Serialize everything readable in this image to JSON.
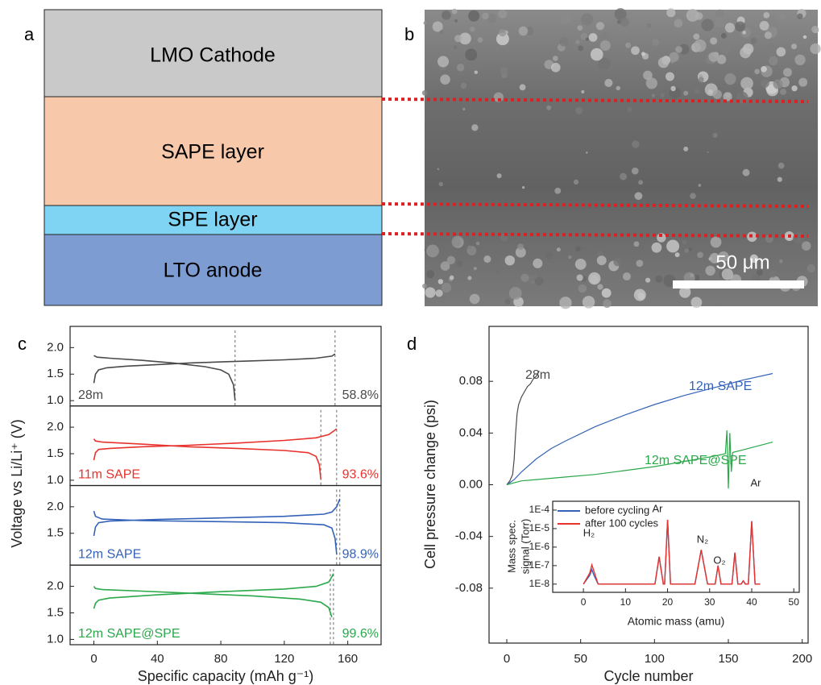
{
  "diagram": {
    "label": "a",
    "layers": [
      "LMO Cathode",
      "SAPE layer",
      "SPE layer",
      "LTO anode"
    ]
  },
  "image": {
    "label": "b",
    "scale_bar": "50 μm"
  },
  "panel_c": {
    "label": "c"
  },
  "panel_d": {
    "label": "d"
  },
  "chart_data": [
    {
      "type": "line",
      "y_label": "Voltage vs Li/Li⁺ (V)",
      "xlim": [
        -15,
        181
      ],
      "ylim": [
        0.9,
        2.4
      ],
      "yticks": [
        {
          "value": 1,
          "label": "1.0"
        },
        1.5,
        {
          "value": 2,
          "label": "2.0"
        }
      ],
      "series": [
        {
          "name": "28m",
          "color": "#4a4a4a",
          "x": [
            0,
            1,
            3,
            8,
            20,
            40,
            60,
            80,
            100,
            120,
            140,
            150,
            152,
            null,
            0,
            2,
            10,
            30,
            50,
            70,
            80,
            85,
            88,
            89
          ],
          "values": [
            1.33,
            1.5,
            1.58,
            1.62,
            1.65,
            1.68,
            1.71,
            1.73,
            1.75,
            1.77,
            1.8,
            1.84,
            1.88,
            null,
            1.85,
            1.82,
            1.8,
            1.76,
            1.71,
            1.64,
            1.58,
            1.5,
            1.3,
            1.0
          ]
        }
      ],
      "markers": [
        89,
        152
      ],
      "annotation": "58.8%"
    },
    {
      "type": "line",
      "xlim": [
        -15,
        181
      ],
      "ylim": [
        0.9,
        2.4
      ],
      "yticks": [
        {
          "value": 1,
          "label": "1.0"
        },
        1.5,
        {
          "value": 2,
          "label": "2.0"
        }
      ],
      "series": [
        {
          "name": "11m SAPE",
          "color": "#e8322d",
          "x": [
            0,
            1,
            3,
            10,
            30,
            60,
            90,
            120,
            140,
            148,
            153,
            null,
            0,
            1,
            5,
            30,
            60,
            90,
            120,
            135,
            140,
            142,
            143
          ],
          "values": [
            1.38,
            1.52,
            1.58,
            1.6,
            1.63,
            1.66,
            1.7,
            1.75,
            1.8,
            1.86,
            1.97,
            null,
            1.78,
            1.74,
            1.72,
            1.68,
            1.63,
            1.6,
            1.56,
            1.52,
            1.45,
            1.3,
            1.02
          ]
        }
      ],
      "markers": [
        143,
        153
      ],
      "annotation": "93.6%"
    },
    {
      "type": "line",
      "xlim": [
        -15,
        181
      ],
      "ylim": [
        0.9,
        2.4
      ],
      "yticks": [
        1.5,
        {
          "value": 2,
          "label": "2.0"
        }
      ],
      "series": [
        {
          "name": "12m SAPE",
          "color": "#3462b8",
          "x": [
            0,
            1,
            3,
            10,
            40,
            80,
            120,
            145,
            150,
            153,
            155,
            null,
            0,
            1,
            5,
            30,
            80,
            120,
            145,
            150,
            152,
            153
          ],
          "values": [
            1.45,
            1.62,
            1.7,
            1.73,
            1.76,
            1.79,
            1.82,
            1.86,
            1.9,
            2.0,
            2.15,
            null,
            1.92,
            1.82,
            1.77,
            1.74,
            1.72,
            1.7,
            1.66,
            1.6,
            1.4,
            1.1
          ]
        }
      ],
      "markers": [
        153,
        155
      ],
      "annotation": "98.9%"
    },
    {
      "type": "line",
      "x_label": "Specific capacity (mAh g⁻¹)",
      "xlim": [
        -15,
        181
      ],
      "ylim": [
        0.9,
        2.4
      ],
      "xticks": [
        0,
        40,
        80,
        120,
        160
      ],
      "yticks": [
        {
          "value": 1,
          "label": "1.0"
        },
        1.5,
        {
          "value": 2,
          "label": "2.0"
        }
      ],
      "series": [
        {
          "name": "12m SAPE@SPE",
          "color": "#2aa84a",
          "x": [
            0,
            1,
            3,
            10,
            40,
            80,
            120,
            140,
            148,
            150,
            151,
            null,
            0,
            1,
            5,
            30,
            60,
            100,
            130,
            143,
            148,
            150
          ],
          "values": [
            1.58,
            1.68,
            1.74,
            1.78,
            1.84,
            1.9,
            1.95,
            2.0,
            2.08,
            2.18,
            2.24,
            null,
            2.0,
            1.96,
            1.94,
            1.91,
            1.87,
            1.82,
            1.76,
            1.7,
            1.6,
            1.42
          ]
        }
      ],
      "markers": [
        149,
        151
      ],
      "annotation": "99.6%"
    },
    {
      "type": "line",
      "x_label": "Cycle number",
      "y_label": "Cell pressure change (psi)",
      "xlim": [
        -12,
        204
      ],
      "ylim": [
        -0.1225,
        0.1225
      ],
      "xticks": [
        0,
        50,
        100,
        150,
        200
      ],
      "yticks": [
        0.08,
        0.04,
        {
          "value": 0,
          "label": "0.00"
        },
        -0.04,
        -0.08
      ],
      "series": [
        {
          "name": "28m",
          "color": "#4a4a4a",
          "x": [
            0,
            2,
            4,
            5,
            6,
            7,
            8,
            10,
            12,
            14,
            16,
            18,
            20,
            22
          ],
          "values": [
            0,
            0.003,
            0.008,
            0.02,
            0.04,
            0.055,
            0.062,
            0.068,
            0.072,
            0.076,
            0.078,
            0.082,
            0.084,
            0.088
          ]
        },
        {
          "name": "12m SAPE",
          "color": "#3462b8",
          "x": [
            0,
            5,
            10,
            20,
            30,
            40,
            60,
            80,
            100,
            120,
            140,
            160,
            180
          ],
          "values": [
            0,
            0.004,
            0.01,
            0.02,
            0.028,
            0.034,
            0.045,
            0.054,
            0.062,
            0.069,
            0.075,
            0.081,
            0.086
          ]
        },
        {
          "name": "12m SAPE@SPE",
          "color": "#2aa84a",
          "x": [
            0,
            10,
            20,
            40,
            60,
            80,
            100,
            120,
            140,
            148,
            149,
            150,
            151,
            152,
            153,
            160,
            180
          ],
          "values": [
            0,
            0.003,
            0.004,
            0.006,
            0.008,
            0.011,
            0.014,
            0.018,
            0.022,
            0.024,
            0.042,
            -0.003,
            0.04,
            0.01,
            0.025,
            0.027,
            0.033
          ]
        }
      ]
    },
    {
      "type": "line",
      "x_label": "Atomic mass (amu)",
      "y_label": [
        "Mass spec.",
        "signal (Torr)"
      ],
      "log_y": true,
      "xlim": [
        -7.3,
        51.3
      ],
      "ylim": [
        3.6e-09,
        0.0003
      ],
      "xticks": [
        0,
        10,
        20,
        30,
        40,
        50
      ],
      "yticks": [
        {
          "value": 1e-08,
          "label": "1E-8"
        },
        {
          "value": 1e-07,
          "label": "1E-7"
        },
        {
          "value": 1e-06,
          "label": "1E-6"
        },
        {
          "value": 1e-05,
          "label": "1E-5"
        },
        {
          "value": 0.0001,
          "label": "1E-4"
        }
      ],
      "legend": "upper left",
      "series": [
        {
          "name": "before cycling",
          "color": "#3462b8",
          "x": [
            0,
            1.5,
            2,
            2.5,
            3.5,
            17,
            18,
            19,
            19.3,
            20,
            20.7,
            26.5,
            28,
            29.5,
            31.3,
            32,
            32.7,
            35.3,
            36,
            36.7,
            37.5,
            38,
            38.5,
            39.2,
            40,
            40.8,
            42
          ],
          "values": [
            1e-08,
            3e-08,
            6e-08,
            3e-08,
            1e-08,
            1e-08,
            3e-07,
            1e-08,
            1e-08,
            3e-05,
            1e-08,
            1e-08,
            7e-07,
            1e-08,
            1e-08,
            1e-07,
            1e-08,
            1e-08,
            5e-07,
            1e-08,
            1e-08,
            1.5e-08,
            1e-08,
            1e-08,
            2.5e-05,
            1e-08,
            1e-08
          ]
        },
        {
          "name": "after 100 cycles",
          "color": "#e8322d",
          "x": [
            0,
            1.5,
            2,
            2.5,
            3.5,
            17,
            18,
            19,
            19.3,
            20,
            20.7,
            26.5,
            28,
            29.5,
            31.3,
            32,
            32.7,
            35.3,
            36,
            36.7,
            37.5,
            38,
            38.5,
            39.2,
            40,
            40.8,
            42
          ],
          "values": [
            1e-08,
            4e-08,
            1.1e-07,
            5e-08,
            1e-08,
            1e-08,
            3e-07,
            1e-08,
            1e-08,
            3e-05,
            1e-08,
            1e-08,
            7e-07,
            1e-08,
            1e-08,
            1e-07,
            1e-08,
            1e-08,
            5e-07,
            1e-08,
            1e-08,
            1.5e-08,
            1e-08,
            1e-08,
            2.5e-05,
            1e-08,
            1e-08
          ]
        }
      ],
      "annotations": [
        "H₂",
        "Ar",
        "N₂",
        "O₂",
        "Ar"
      ]
    }
  ]
}
